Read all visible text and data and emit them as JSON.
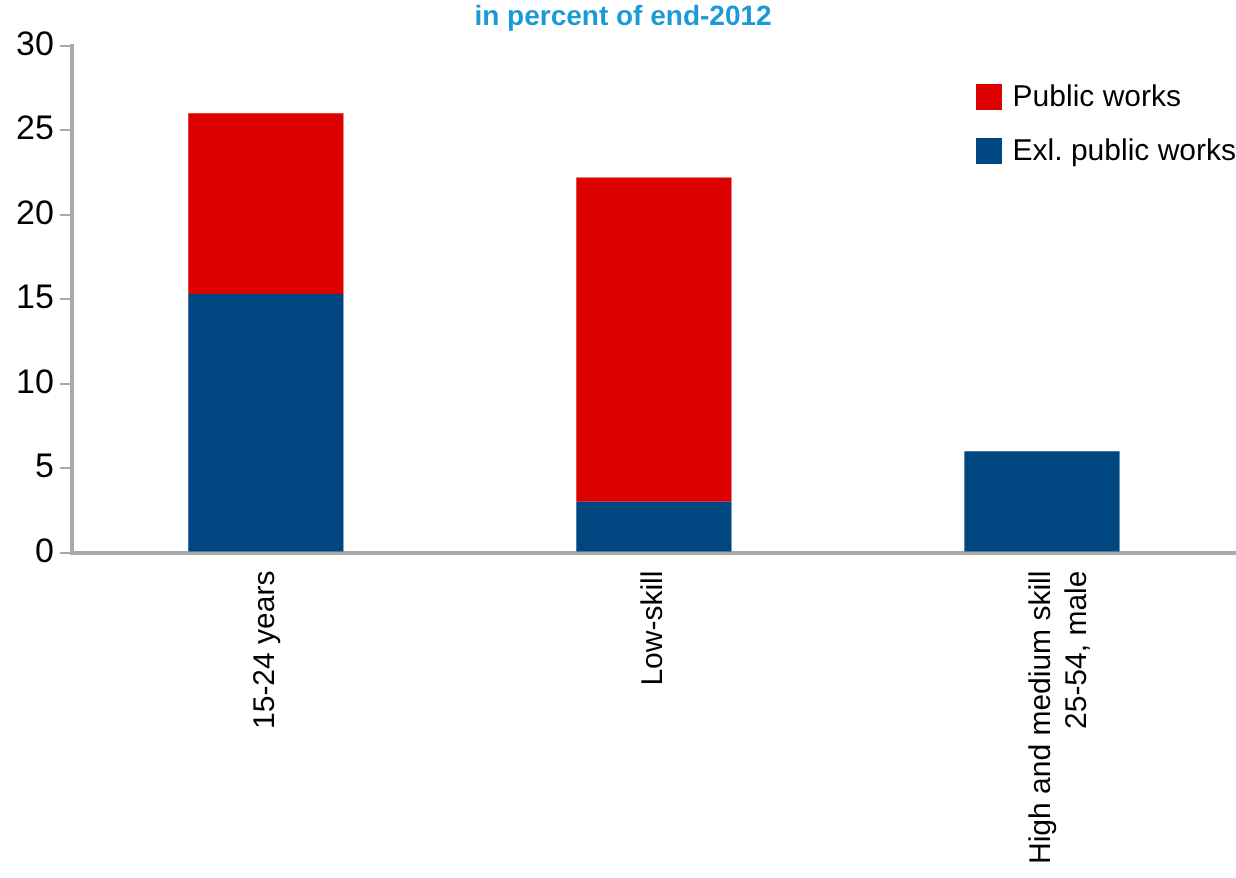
{
  "chart_data": {
    "type": "bar",
    "title": "in percent of end-2012",
    "categories": [
      "15-24 years",
      "Low-skill",
      "High and medium skill\n25-54, male"
    ],
    "series": [
      {
        "name": "Exl. public works",
        "color": "#004781",
        "values": [
          15.3,
          3,
          6
        ]
      },
      {
        "name": "Public works",
        "color": "#dd0000",
        "values": [
          10.7,
          19.2,
          null
        ]
      }
    ],
    "stacked": true,
    "ylim": [
      0,
      30
    ],
    "yticks": [
      0,
      5,
      10,
      15,
      20,
      25,
      30
    ],
    "grid": false,
    "legend": "top right"
  }
}
